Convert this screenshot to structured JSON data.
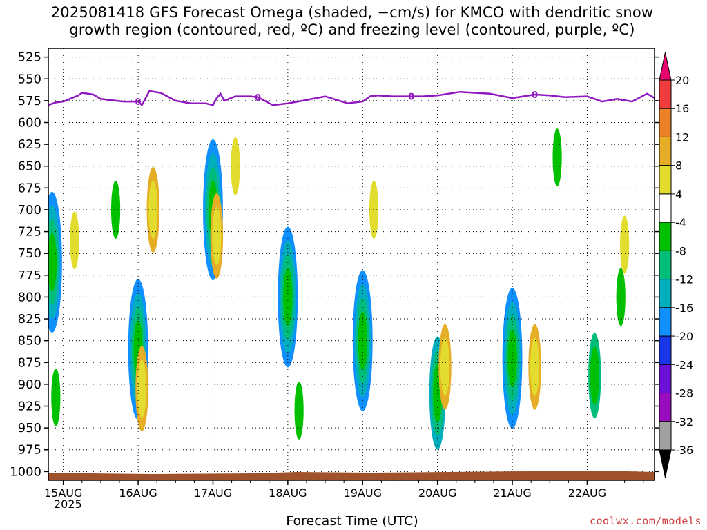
{
  "title": {
    "line1": "2025081418 GFS Forecast Omega (shaded, −cm/s) for KMCO with dendritic snow",
    "line2": "growth region (contoured, red, ºC) and freezing level (contoured, purple, ºC)"
  },
  "credit": "coolwx.com/models",
  "chart_data": {
    "type": "heatmap",
    "title": "2025081418 GFS Forecast Omega (shaded, −cm/s) for KMCO with dendritic snow growth region (contoured, red, ºC) and freezing level (contoured, purple, ºC)",
    "xlabel": "Forecast Time (UTC)",
    "x_tick_labels": [
      "15AUG",
      "16AUG",
      "17AUG",
      "18AUG",
      "19AUG",
      "20AUG",
      "21AUG",
      "22AUG"
    ],
    "x_year_label": "2025",
    "x_range_days": [
      -0.2,
      7.9
    ],
    "y_tick_labels": [
      "525",
      "550",
      "575",
      "600",
      "625",
      "650",
      "675",
      "700",
      "725",
      "750",
      "775",
      "800",
      "825",
      "850",
      "875",
      "900",
      "925",
      "950",
      "975",
      "1000"
    ],
    "ylim": [
      515,
      1010
    ],
    "y_reversed": true,
    "grid": true,
    "colorbar": {
      "labels": [
        "20",
        "16",
        "12",
        "8",
        "4",
        "-4",
        "-8",
        "-12",
        "-16",
        "-20",
        "-24",
        "-28",
        "-32",
        "-36"
      ],
      "colors": [
        "#e8006e",
        "#f03c3c",
        "#ec8226",
        "#e6ae26",
        "#e2dc2e",
        "#ffffff",
        "#00c000",
        "#00be7a",
        "#00aebe",
        "#1090ff",
        "#1838e8",
        "#6a10d8",
        "#9a0cc0",
        "#a0a0a0",
        "#000000"
      ]
    },
    "freezing_level": {
      "label": "0",
      "color": "#9018c0",
      "x_days": [
        -0.2,
        -0.1,
        0.0,
        0.2,
        0.25,
        0.4,
        0.5,
        0.8,
        1.0,
        1.05,
        1.15,
        1.3,
        1.5,
        1.7,
        1.9,
        2.0,
        2.05,
        2.1,
        2.15,
        2.3,
        2.5,
        2.6,
        2.8,
        3.0,
        3.2,
        3.5,
        3.8,
        4.0,
        4.1,
        4.2,
        4.4,
        4.6,
        4.8,
        5.0,
        5.3,
        5.5,
        5.7,
        6.0,
        6.3,
        6.5,
        6.7,
        7.0,
        7.2,
        7.4,
        7.6,
        7.8,
        7.9
      ],
      "y_hpa": [
        580,
        577,
        576,
        569,
        566,
        568,
        573,
        576,
        576,
        580,
        564,
        566,
        575,
        578,
        578,
        580,
        572,
        567,
        575,
        570,
        570,
        571,
        580,
        578,
        575,
        570,
        578,
        576,
        570,
        569,
        570,
        570,
        570,
        569,
        565,
        566,
        567,
        572,
        568,
        569,
        571,
        570,
        576,
        573,
        576,
        567,
        572
      ]
    },
    "omega_cells": [
      {
        "day": -0.1,
        "p": 915,
        "value": -4
      },
      {
        "day": -0.15,
        "p": 760,
        "value": -16
      },
      {
        "day": 0.15,
        "p": 735,
        "value": 4
      },
      {
        "day": 0.7,
        "p": 700,
        "value": -4
      },
      {
        "day": 1.0,
        "p": 860,
        "value": -16
      },
      {
        "day": 1.05,
        "p": 905,
        "value": 8
      },
      {
        "day": 1.2,
        "p": 700,
        "value": 8
      },
      {
        "day": 2.0,
        "p": 700,
        "value": -16
      },
      {
        "day": 2.05,
        "p": 730,
        "value": 8
      },
      {
        "day": 2.3,
        "p": 650,
        "value": 4
      },
      {
        "day": 3.0,
        "p": 800,
        "value": -20
      },
      {
        "day": 3.15,
        "p": 930,
        "value": -4
      },
      {
        "day": 4.0,
        "p": 850,
        "value": -20
      },
      {
        "day": 4.15,
        "p": 700,
        "value": 4
      },
      {
        "day": 5.0,
        "p": 910,
        "value": -12
      },
      {
        "day": 5.1,
        "p": 880,
        "value": 8
      },
      {
        "day": 6.0,
        "p": 870,
        "value": -24
      },
      {
        "day": 6.3,
        "p": 880,
        "value": 8
      },
      {
        "day": 7.1,
        "p": 890,
        "value": -8
      },
      {
        "day": 7.45,
        "p": 800,
        "value": -4
      },
      {
        "day": 7.5,
        "p": 740,
        "value": 4
      },
      {
        "day": 6.6,
        "p": 640,
        "value": -4
      }
    ]
  }
}
